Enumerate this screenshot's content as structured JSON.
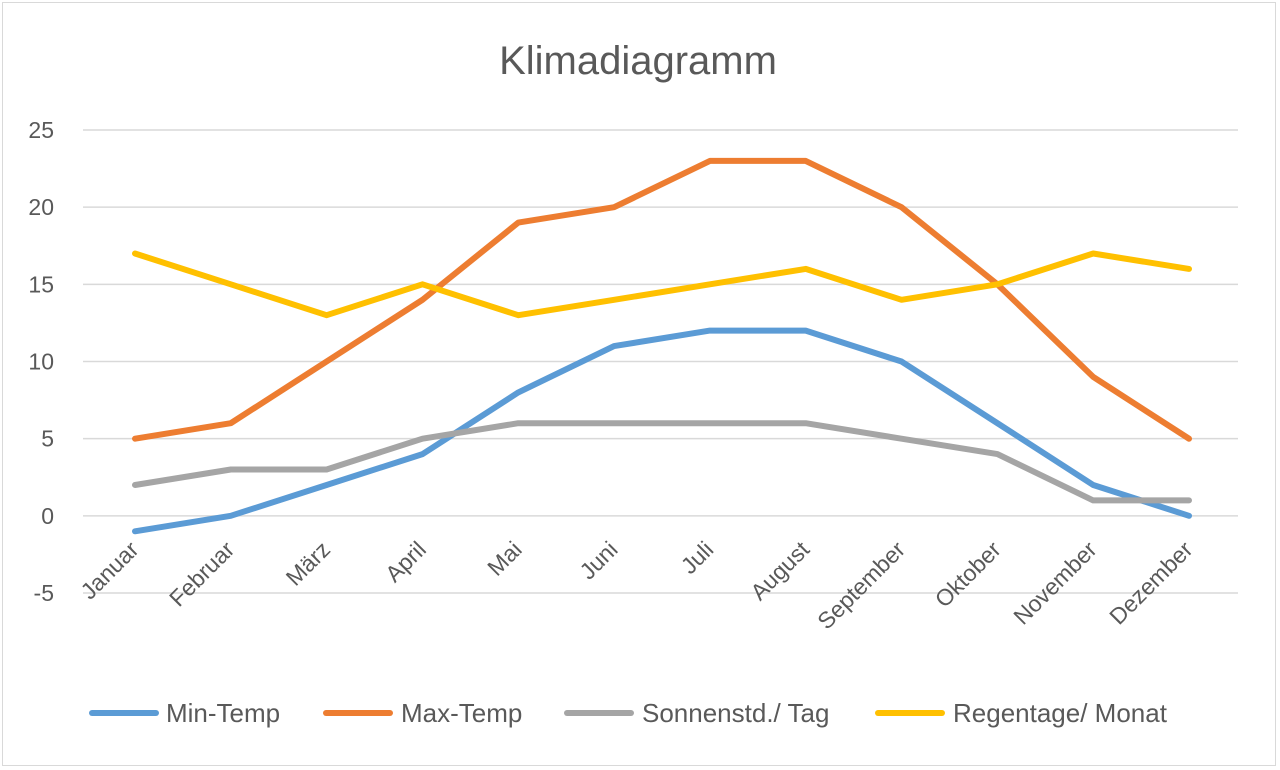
{
  "chart_data": {
    "type": "line",
    "title": "Klimadiagramm",
    "xlabel": "",
    "ylabel": "",
    "categories": [
      "Januar",
      "Februar",
      "März",
      "April",
      "Mai",
      "Juni",
      "Juli",
      "August",
      "September",
      "Oktober",
      "November",
      "Dezember"
    ],
    "ylim": [
      -5,
      25
    ],
    "yticks": [
      -5,
      0,
      5,
      10,
      15,
      20,
      25
    ],
    "grid": true,
    "legend_position": "bottom",
    "series": [
      {
        "name": "Min-Temp",
        "color": "#5b9bd5",
        "values": [
          -1,
          0,
          2,
          4,
          8,
          11,
          12,
          12,
          10,
          6,
          2,
          0
        ]
      },
      {
        "name": "Max-Temp",
        "color": "#ed7d31",
        "values": [
          5,
          6,
          10,
          14,
          19,
          20,
          23,
          23,
          20,
          15,
          9,
          5
        ]
      },
      {
        "name": "Sonnenstd./ Tag",
        "color": "#a5a5a5",
        "values": [
          2,
          3,
          3,
          5,
          6,
          6,
          6,
          6,
          5,
          4,
          1,
          1
        ]
      },
      {
        "name": "Regentage/ Monat",
        "color": "#ffc000",
        "values": [
          17,
          15,
          13,
          15,
          13,
          14,
          15,
          16,
          14,
          15,
          17,
          16
        ]
      }
    ]
  }
}
